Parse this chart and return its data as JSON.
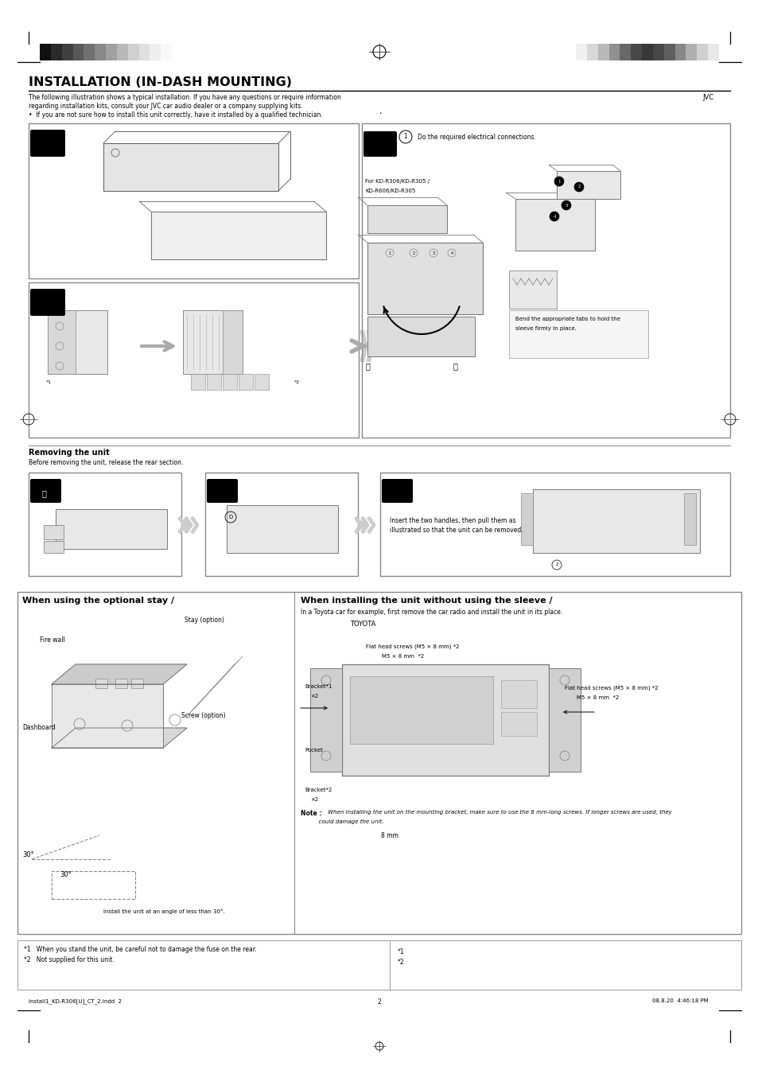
{
  "page_bg": "#ffffff",
  "title": "INSTALLATION (IN-DASH MOUNTING)",
  "subtitle_lines": [
    "The following illustration shows a typical installation. If you have any questions or require information",
    "regarding installation kits, consult your JVC car audio dealer or a company supplying kits.",
    "•  If you are not sure how to install this unit correctly, have it installed by a qualified technician."
  ],
  "jvc_label": "JVC",
  "dot_label": "•",
  "removing_title": "Removing the unit",
  "removing_subtitle": "Before removing the unit, release the rear section.",
  "optional_stay_title": "When using the optional stay /",
  "installing_title": "When installing the unit without using the sleeve /",
  "installing_sub": "In a Toyota car for example, first remove the car radio and install the unit in its place.",
  "toyota_label": "TOYOTA",
  "fire_wall": "Fire wall",
  "dashboard": "Dashboard",
  "stay_option": "Stay (option)",
  "screw_option": "Screw (option)",
  "install_angle": "Install the unit at an angle of less than 30°.",
  "angle_label": "30°",
  "angle_label2": "30°",
  "flat_screws1": "Flat head screws (M5 × 8 mm) *2",
  "m5_1": "M5 × 8 mm  *2",
  "bracket1_label": "Bracket*1",
  "bracket1_x2": "×2",
  "pocket_label": "Pocket",
  "flat_screws2": "Flat head screws (M5 × 8 mm) *2",
  "m5_2": "M5 × 8 mm  *2",
  "bracket2_label": "Bracket*2",
  "bracket2_x2": "×2",
  "note_bold": "Note :",
  "note_italic": " When installing the unit on the mounting bracket, make sure to use the 8 mm-long screws. If longer screws are used, they",
  "note_italic2": "          could damage the unit.",
  "note_8mm": "8 mm",
  "insert_text1": "Insert the two handles, then pull them as",
  "insert_text2": "illustrated so that the unit can be removed.",
  "bend_text1": "Bend the appropriate tabs to hold the",
  "bend_text2": "sleeve firmly in place.",
  "for_kd1": "For KD-R306/KD-R305 /",
  "for_kd2": "KD-R606/KD-R305",
  "do_electrical": "Do the required electrical connections.",
  "footer_note1": "*1   When you stand the unit, be careful not to damage the fuse on the rear.",
  "footer_note2": "*2   Not supplied for this unit.",
  "page_num": "2",
  "install_file": "Install1_KD-R306[U]_CT_2.indd  2",
  "date_text": "08.8.20  4:46:18 PM",
  "grad_left": [
    "#111111",
    "#2a2a2a",
    "#404040",
    "#585858",
    "#707070",
    "#888888",
    "#a0a0a0",
    "#b8b8b8",
    "#d0d0d0",
    "#e0e0e0",
    "#eeeeee",
    "#f8f8f8",
    "#ffffff"
  ],
  "grad_right": [
    "#f0f0f0",
    "#d8d8d8",
    "#b8b8b8",
    "#909090",
    "#686868",
    "#484848",
    "#383838",
    "#484848",
    "#606060",
    "#888888",
    "#b0b0b0",
    "#d0d0d0",
    "#e8e8e8"
  ]
}
